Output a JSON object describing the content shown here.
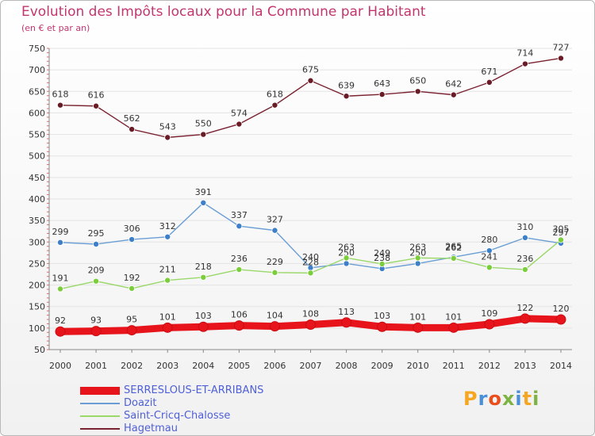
{
  "title": "Evolution des Impôts locaux pour la Commune par Habitant",
  "subtitle": "(en € et par an)",
  "logo": {
    "text": "Proxiti",
    "letters": [
      {
        "ch": "P",
        "color": "#f5a623"
      },
      {
        "ch": "r",
        "color": "#4a90d9"
      },
      {
        "ch": "o",
        "color": "#e94e1b"
      },
      {
        "ch": "x",
        "color": "#7cb342"
      },
      {
        "ch": "i",
        "color": "#4a90d9"
      },
      {
        "ch": "t",
        "color": "#f5a623"
      },
      {
        "ch": "i",
        "color": "#7cb342"
      }
    ]
  },
  "chart_data": {
    "type": "line",
    "categories": [
      "2000",
      "2001",
      "2002",
      "2003",
      "2004",
      "2005",
      "2006",
      "2007",
      "2008",
      "2009",
      "2010",
      "2011",
      "2012",
      "2013",
      "2014"
    ],
    "ylim": [
      50,
      750
    ],
    "yticks": [
      50,
      100,
      150,
      200,
      250,
      300,
      350,
      400,
      450,
      500,
      550,
      600,
      650,
      700,
      750
    ],
    "grid": true,
    "legend_position": "bottom-left",
    "series": [
      {
        "name": "Hagetmau",
        "color": "#7a2230",
        "marker": "#6a1c26",
        "values": [
          618,
          616,
          562,
          543,
          550,
          574,
          618,
          675,
          639,
          643,
          650,
          642,
          671,
          714,
          727
        ]
      },
      {
        "name": "Doazit",
        "color": "#6a9ed4",
        "marker": "#3d7fc8",
        "values": [
          299,
          295,
          306,
          312,
          391,
          337,
          327,
          240,
          250,
          238,
          250,
          265,
          280,
          310,
          297
        ]
      },
      {
        "name": "Saint-Cricq-Chalosse",
        "color": "#9ad86a",
        "marker": "#7ccd3c",
        "values": [
          191,
          209,
          192,
          211,
          218,
          236,
          229,
          228,
          263,
          249,
          263,
          262,
          241,
          236,
          305
        ]
      },
      {
        "name": "SERRESLOUS-ET-ARRIBANS",
        "color": "#e8141c",
        "marker": "#e8141c",
        "values": [
          92,
          93,
          95,
          101,
          103,
          106,
          104,
          108,
          113,
          103,
          101,
          101,
          109,
          122,
          120
        ]
      }
    ],
    "legend_order": [
      "SERRESLOUS-ET-ARRIBANS",
      "Doazit",
      "Saint-Cricq-Chalosse",
      "Hagetmau"
    ]
  }
}
